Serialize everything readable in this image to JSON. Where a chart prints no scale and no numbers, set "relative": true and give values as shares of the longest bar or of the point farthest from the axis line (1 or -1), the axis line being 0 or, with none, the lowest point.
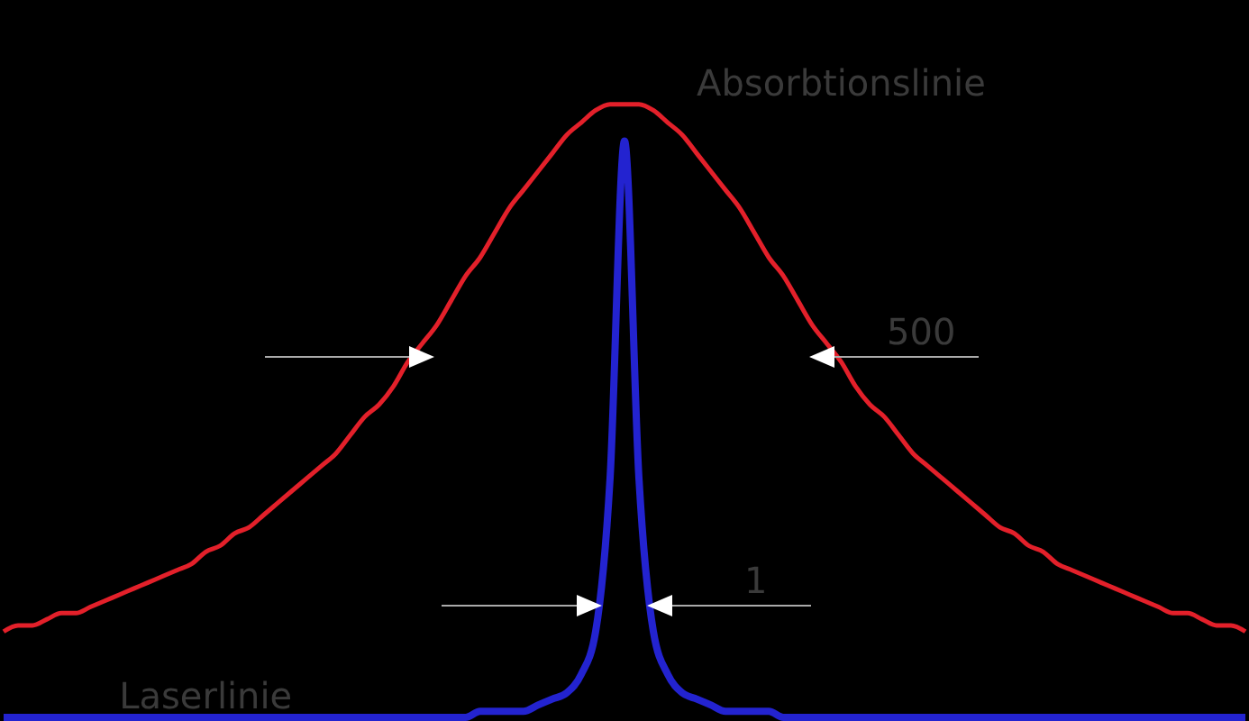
{
  "chart_data": {
    "type": "line",
    "relative": true,
    "categories": [
      null,
      null,
      null,
      null,
      null,
      null,
      null,
      null,
      null,
      null,
      null,
      null,
      null,
      null,
      null,
      null,
      null,
      null,
      null,
      null,
      null,
      null,
      null,
      null,
      null,
      null,
      null,
      null,
      null,
      null,
      null,
      null,
      null,
      null,
      null,
      null,
      null,
      null,
      null,
      null,
      null,
      null,
      null,
      null,
      null,
      null,
      null,
      null,
      null,
      null,
      null,
      null,
      null,
      null,
      null,
      null,
      null,
      null,
      null,
      null,
      null,
      null,
      null,
      null,
      null,
      null,
      null,
      null,
      null,
      null,
      null,
      null,
      null,
      null,
      null,
      null,
      null,
      null,
      null,
      null,
      null,
      null,
      null,
      null,
      null,
      null,
      null
    ],
    "series": [
      {
        "name": "Absorbtionslinie",
        "color": "#e3202a",
        "values": [
          0.14,
          0.15,
          0.15,
          0.16,
          0.17,
          0.17,
          0.18,
          0.19,
          0.2,
          0.21,
          0.22,
          0.23,
          0.24,
          0.25,
          0.27,
          0.28,
          0.3,
          0.31,
          0.33,
          0.35,
          0.37,
          0.39,
          0.41,
          0.43,
          0.46,
          0.49,
          0.51,
          0.54,
          0.58,
          0.61,
          0.64,
          0.68,
          0.72,
          0.75,
          0.79,
          0.83,
          0.86,
          0.89,
          0.92,
          0.95,
          0.97,
          0.99,
          1,
          1,
          1,
          0.99,
          0.97,
          0.95,
          0.92,
          0.89,
          0.86,
          0.83,
          0.79,
          0.75,
          0.72,
          0.68,
          0.64,
          0.61,
          0.58,
          0.54,
          0.51,
          0.49,
          0.46,
          0.43,
          0.41,
          0.39,
          0.37,
          0.35,
          0.33,
          0.31,
          0.3,
          0.28,
          0.27,
          0.25,
          0.24,
          0.23,
          0.22,
          0.21,
          0.2,
          0.19,
          0.18,
          0.17,
          0.17,
          0.16,
          0.15,
          0.15,
          0.14
        ]
      },
      {
        "name": "Laserlinie",
        "color": "#2323d0",
        "values": [
          0,
          0,
          0,
          0,
          0,
          0,
          0,
          0,
          0,
          0,
          0,
          0,
          0,
          0,
          0,
          0,
          0,
          0,
          0,
          0,
          0,
          0,
          0,
          0,
          0,
          0,
          0,
          0,
          0,
          0,
          0,
          0,
          0,
          0.01,
          0.01,
          0.01,
          0.01,
          0.02,
          0.03,
          0.04,
          0.07,
          0.14,
          0.39,
          0.94,
          0.39,
          0.14,
          0.07,
          0.04,
          0.03,
          0.02,
          0.01,
          0.01,
          0.01,
          0.01,
          0,
          0,
          0,
          0,
          0,
          0,
          0,
          0,
          0,
          0,
          0,
          0,
          0,
          0,
          0,
          0,
          0,
          0,
          0,
          0,
          0,
          0,
          0,
          0,
          0,
          0,
          0,
          0,
          0,
          0,
          0,
          0,
          0
        ]
      }
    ],
    "annotations": [
      "500",
      "1"
    ]
  }
}
